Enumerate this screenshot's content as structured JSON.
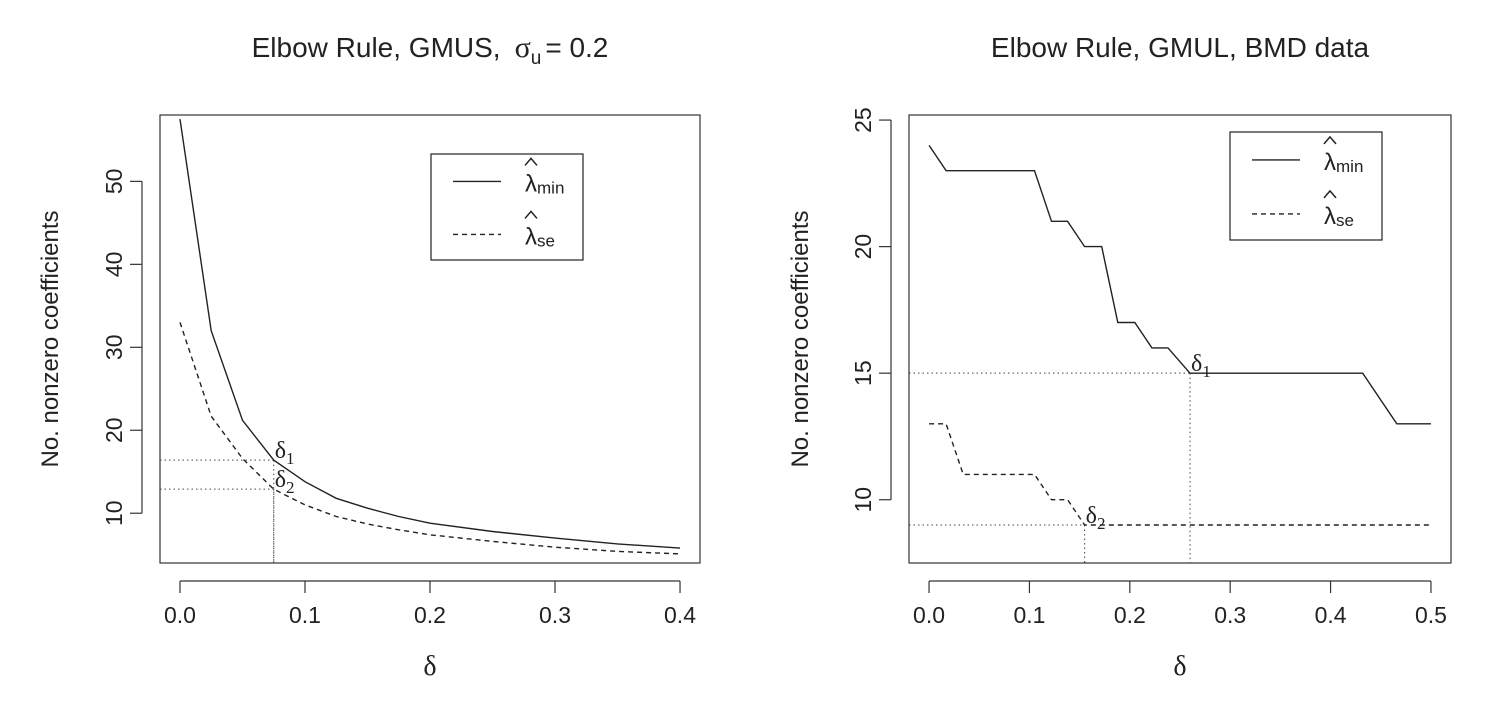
{
  "chart_data": [
    {
      "type": "line",
      "title_main": "Elbow Rule, GMUS,",
      "title_symbol": "σ",
      "title_subscript": "u",
      "title_tail": "= 0.2",
      "xlabel": "δ",
      "ylabel": "No. nonzero coefficients",
      "xlim": [
        0,
        0.4
      ],
      "ylim": [
        4,
        58
      ],
      "xticks": [
        0.0,
        0.1,
        0.2,
        0.3,
        0.4
      ],
      "xtick_labels": [
        "0.0",
        "0.1",
        "0.2",
        "0.3",
        "0.4"
      ],
      "yticks": [
        10,
        20,
        30,
        40,
        50
      ],
      "ytick_labels": [
        "10",
        "20",
        "30",
        "40",
        "50"
      ],
      "grid": false,
      "legend_position": "top-right",
      "series": [
        {
          "name": "λ̂min",
          "legend_symbol": "λ",
          "legend_sub": "min",
          "style": "solid",
          "x": [
            0,
            0.025,
            0.05,
            0.075,
            0.1,
            0.125,
            0.15,
            0.175,
            0.2,
            0.25,
            0.3,
            0.35,
            0.4
          ],
          "y": [
            57.5,
            32,
            21.2,
            16.4,
            13.8,
            11.8,
            10.6,
            9.6,
            8.8,
            7.8,
            7,
            6.3,
            5.8
          ]
        },
        {
          "name": "λ̂se",
          "legend_symbol": "λ",
          "legend_sub": "se",
          "style": "dashed",
          "x": [
            0,
            0.025,
            0.05,
            0.075,
            0.1,
            0.125,
            0.15,
            0.175,
            0.2,
            0.25,
            0.3,
            0.35,
            0.4
          ],
          "y": [
            33,
            21.7,
            16.6,
            12.9,
            11,
            9.6,
            8.7,
            8,
            7.4,
            6.6,
            5.9,
            5.4,
            5.1
          ]
        }
      ],
      "reference_lines": [
        {
          "label": "δ",
          "label_sub": "1",
          "x": 0.075,
          "y": 16.4
        },
        {
          "label": "δ",
          "label_sub": "2",
          "x": 0.075,
          "y": 12.9
        }
      ]
    },
    {
      "type": "line",
      "title_main": "Elbow Rule, GMUL, BMD data",
      "title_symbol": "",
      "title_subscript": "",
      "title_tail": "",
      "xlabel": "δ",
      "ylabel": "No. nonzero coefficients",
      "xlim": [
        0,
        0.5
      ],
      "ylim": [
        7.5,
        25.2
      ],
      "xticks": [
        0.0,
        0.1,
        0.2,
        0.3,
        0.4,
        0.5
      ],
      "xtick_labels": [
        "0.0",
        "0.1",
        "0.2",
        "0.3",
        "0.4",
        "0.5"
      ],
      "yticks": [
        10,
        15,
        20,
        25
      ],
      "ytick_labels": [
        "10",
        "15",
        "20",
        "25"
      ],
      "grid": false,
      "legend_position": "top-right",
      "series": [
        {
          "name": "λ̂min",
          "legend_symbol": "λ",
          "legend_sub": "min",
          "style": "solid",
          "x": [
            0,
            0.017,
            0.105,
            0.122,
            0.138,
            0.155,
            0.172,
            0.188,
            0.205,
            0.222,
            0.238,
            0.26,
            0.432,
            0.466,
            0.5
          ],
          "y": [
            24,
            23,
            23,
            21,
            21,
            20,
            20,
            17,
            17,
            16,
            16,
            15,
            15,
            13,
            13
          ]
        },
        {
          "name": "λ̂se",
          "legend_symbol": "λ",
          "legend_sub": "se",
          "style": "dashed",
          "x": [
            0,
            0.017,
            0.034,
            0.105,
            0.122,
            0.138,
            0.155,
            0.5
          ],
          "y": [
            13,
            13,
            11,
            11,
            10,
            10,
            9,
            9
          ]
        }
      ],
      "reference_lines": [
        {
          "label": "δ",
          "label_sub": "1",
          "x": 0.26,
          "y": 15
        },
        {
          "label": "δ",
          "label_sub": "2",
          "x": 0.155,
          "y": 9
        }
      ]
    }
  ]
}
